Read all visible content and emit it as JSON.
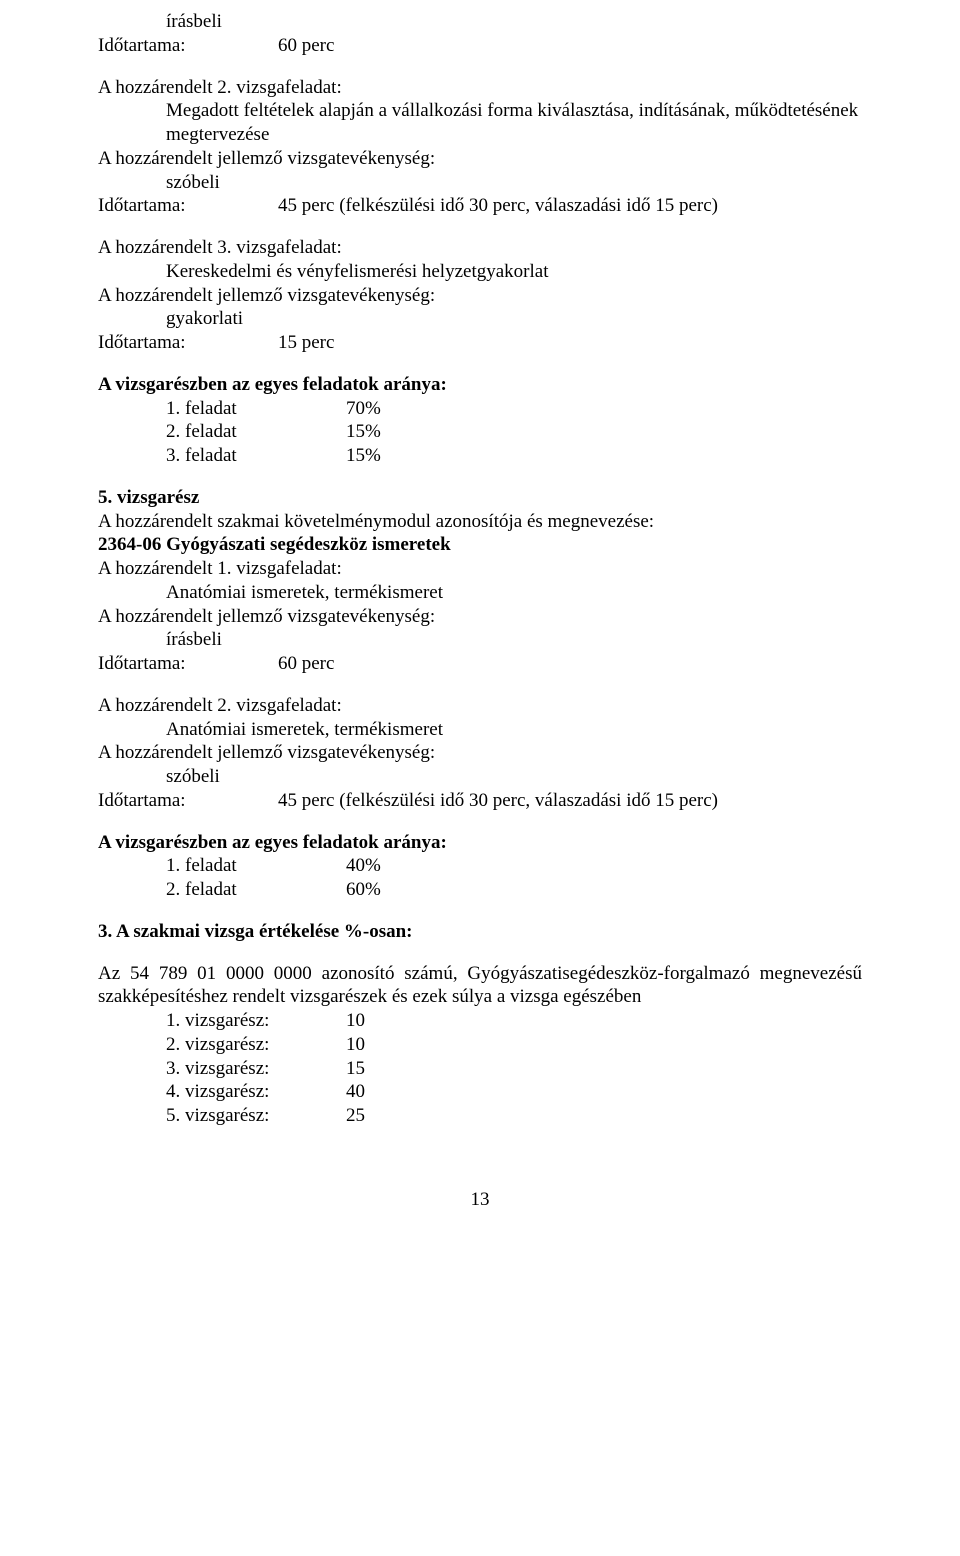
{
  "s1": {
    "l1": "írásbeli",
    "l2a": "Időtartama:",
    "l2b": "60 perc"
  },
  "s2": {
    "h": "A hozzárendelt 2. vizsgafeladat:",
    "l1": "Megadott feltételek alapján a vállalkozási forma kiválasztása, indításának, működtetésének megtervezése",
    "l2": "A hozzárendelt jellemző vizsgatevékenység:",
    "l3": "szóbeli",
    "l4a": "Időtartama:",
    "l4b": "45 perc (felkészülési idő 30 perc, válaszadási idő 15 perc)"
  },
  "s3": {
    "h": "A hozzárendelt 3. vizsgafeladat:",
    "l1": "Kereskedelmi és vényfelismerési helyzetgyakorlat",
    "l2": "A hozzárendelt jellemző vizsgatevékenység:",
    "l3": "gyakorlati",
    "l4a": "Időtartama:",
    "l4b": "15 perc"
  },
  "s4": {
    "h": "A vizsgarészben az egyes feladatok aránya:",
    "r1a": "1. feladat",
    "r1b": "70%",
    "r2a": "2. feladat",
    "r2b": "15%",
    "r3a": "3. feladat",
    "r3b": "15%"
  },
  "s5": {
    "h": "5. vizsgarész",
    "l1": "A hozzárendelt szakmai követelménymodul azonosítója és megnevezése:",
    "l2": "2364-06  Gyógyászati segédeszköz ismeretek",
    "l3": "A hozzárendelt 1. vizsgafeladat:",
    "l4": "Anatómiai ismeretek, termékismeret",
    "l5": "A hozzárendelt jellemző vizsgatevékenység:",
    "l6": "írásbeli",
    "l7a": "Időtartama:",
    "l7b": "60 perc"
  },
  "s6": {
    "h": "A hozzárendelt 2. vizsgafeladat:",
    "l1": "Anatómiai ismeretek, termékismeret",
    "l2": "A hozzárendelt jellemző vizsgatevékenység:",
    "l3": "szóbeli",
    "l4a": "Időtartama:",
    "l4b": "45 perc (felkészülési idő 30 perc, válaszadási idő 15 perc)"
  },
  "s7": {
    "h": "A vizsgarészben az egyes feladatok aránya:",
    "r1a": "1. feladat",
    "r1b": "40%",
    "r2a": "2. feladat",
    "r2b": "60%"
  },
  "s8": {
    "h": "3.   A szakmai vizsga értékelése %-osan:",
    "p": "Az 54 789 01 0000 0000 azonosító számú, Gyógyászatisegédeszköz-forgalmazó megnevezésű szakképesítéshez rendelt vizsgarészek és ezek súlya a vizsga egészében",
    "r1a": "1. vizsgarész:",
    "r1b": "10",
    "r2a": "2. vizsgarész:",
    "r2b": "10",
    "r3a": "3. vizsgarész:",
    "r3b": "15",
    "r4a": "4. vizsgarész:",
    "r4b": "40",
    "r5a": "5. vizsgarész:",
    "r5b": "25"
  },
  "pagenum": "13"
}
